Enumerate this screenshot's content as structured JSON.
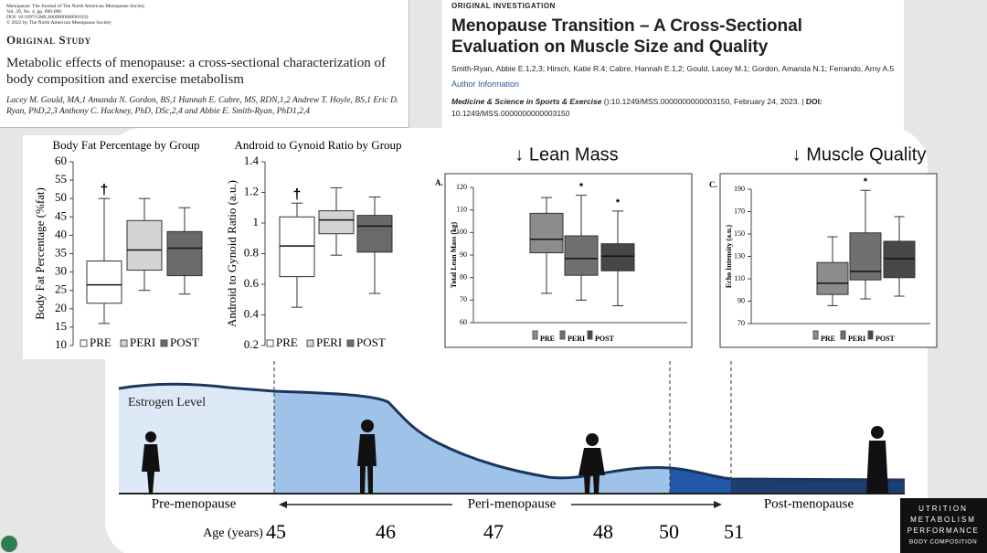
{
  "paper1": {
    "journal": "Menopause: The Journal of The North American Menopause Society",
    "volume": "Vol. 29, No. 4, pp. 000-000",
    "doi": "DOI: 10.1097/GME.0000000000001932",
    "copyright": "© 2022 by The North American Menopause Society",
    "section": "Original Study",
    "title": "Metabolic effects of menopause: a cross-sectional characterization of body composition and exercise metabolism",
    "authors": "Lacey M. Gould, MA,1 Amanda N. Gordon, BS,1 Hannah E. Cabre, MS, RDN,1,2 Andrew T. Hoyle, BS,1 Eric D. Ryan, PhD,2,3 Anthony C. Hackney, PhD, DSc,2,4 and Abbie E. Smith-Ryan, PhD1,2,4"
  },
  "paper2": {
    "section": "ORIGINAL INVESTIGATION",
    "title": "Menopause Transition – A Cross-Sectional Evaluation on Muscle Size and Quality",
    "authors": "Smith-Ryan, Abbie E.1,2,3; Hirsch, Katie R.4; Cabre, Hannah E.1,2; Gould, Lacey M.1; Gordon, Amanda N.1; Ferrando, Arny A.5",
    "author_info": "Author Information",
    "journal": "Medicine & Science in Sports & Exercise",
    "citation": "():10.1249/MSS.0000000000003150, February 24, 2023. |",
    "doi_label": "DOI:",
    "doi": "10.1249/MSS.0000000000003150"
  },
  "chart_data": [
    {
      "type": "box",
      "title": "Body Fat Percentage by Group",
      "ylabel": "Body Fat Percentage (%fat)",
      "ylim": [
        10,
        60
      ],
      "yticks": [
        10,
        15,
        20,
        25,
        30,
        35,
        40,
        45,
        50,
        55,
        60
      ],
      "boxes": [
        {
          "name": "PRE",
          "color": "#ffffff",
          "min": 16,
          "q1": 21.5,
          "median": 26.5,
          "q3": 33,
          "max": 50,
          "annotation": "†"
        },
        {
          "name": "PERI",
          "color": "#d4d4d4",
          "min": 25,
          "q1": 30.5,
          "median": 36,
          "q3": 44,
          "max": 50
        },
        {
          "name": "POST",
          "color": "#6a6a6a",
          "min": 24,
          "q1": 29,
          "median": 36.5,
          "q3": 41,
          "max": 47.5
        }
      ]
    },
    {
      "type": "box",
      "title": "Android to Gynoid Ratio by Group",
      "ylabel": "Android to Gynoid Ratio (a.u.)",
      "ylim": [
        0.2,
        1.4
      ],
      "yticks": [
        0.2,
        0.4,
        0.6,
        0.8,
        1,
        1.2,
        1.4
      ],
      "boxes": [
        {
          "name": "PRE",
          "color": "#ffffff",
          "min": 0.45,
          "q1": 0.65,
          "median": 0.85,
          "q3": 1.04,
          "max": 1.13,
          "annotation": "†"
        },
        {
          "name": "PERI",
          "color": "#d4d4d4",
          "min": 0.79,
          "q1": 0.93,
          "median": 1.02,
          "q3": 1.08,
          "max": 1.23
        },
        {
          "name": "POST",
          "color": "#6a6a6a",
          "min": 0.54,
          "q1": 0.81,
          "median": 0.98,
          "q3": 1.05,
          "max": 1.17
        }
      ]
    },
    {
      "type": "box",
      "heading": "↓ Lean Mass",
      "panel": "A.",
      "ylabel": "Total Lean Mass (kg)",
      "ylim": [
        60,
        120
      ],
      "yticks": [
        60,
        70,
        80,
        90,
        100,
        110,
        120
      ],
      "boxes": [
        {
          "name": "PRE",
          "color": "#8c8c8c",
          "min": 73,
          "q1": 91,
          "median": 97,
          "q3": 108.5,
          "max": 115.5
        },
        {
          "name": "PERI",
          "color": "#707070",
          "min": 70,
          "q1": 81,
          "median": 88.5,
          "q3": 98.5,
          "max": 116.5,
          "annotation": "*"
        },
        {
          "name": "POST",
          "color": "#474747",
          "min": 67.5,
          "q1": 83,
          "median": 89.5,
          "q3": 95,
          "max": 109.5,
          "annotation": "*"
        }
      ]
    },
    {
      "type": "box",
      "heading": "↓ Muscle Quality",
      "panel": "C.",
      "ylabel": "Echo Intensity (a.u.)",
      "ylim": [
        70,
        190
      ],
      "yticks": [
        70,
        90,
        110,
        130,
        150,
        170,
        190
      ],
      "boxes": [
        {
          "name": "PRE",
          "color": "#8c8c8c",
          "min": 86,
          "q1": 96,
          "median": 106,
          "q3": 124.5,
          "max": 147.5
        },
        {
          "name": "PERI",
          "color": "#707070",
          "min": 92,
          "q1": 109,
          "median": 116.5,
          "q3": 151,
          "max": 189,
          "annotation": "*"
        },
        {
          "name": "POST",
          "color": "#474747",
          "min": 94.5,
          "q1": 111,
          "median": 128,
          "q3": 143.5,
          "max": 165.5
        }
      ]
    }
  ],
  "timeline": {
    "curve_label": "Estrogen Level",
    "stages": [
      "Pre-menopause",
      "Peri-menopause",
      "Post-menopause"
    ],
    "age_label": "Age (years)",
    "ages": [
      "45",
      "46",
      "47",
      "48",
      "50",
      "51"
    ]
  },
  "logo": [
    "UTRITION",
    "METABOLISM",
    "PERFORMANCE",
    "BODY COMPOSITION"
  ]
}
